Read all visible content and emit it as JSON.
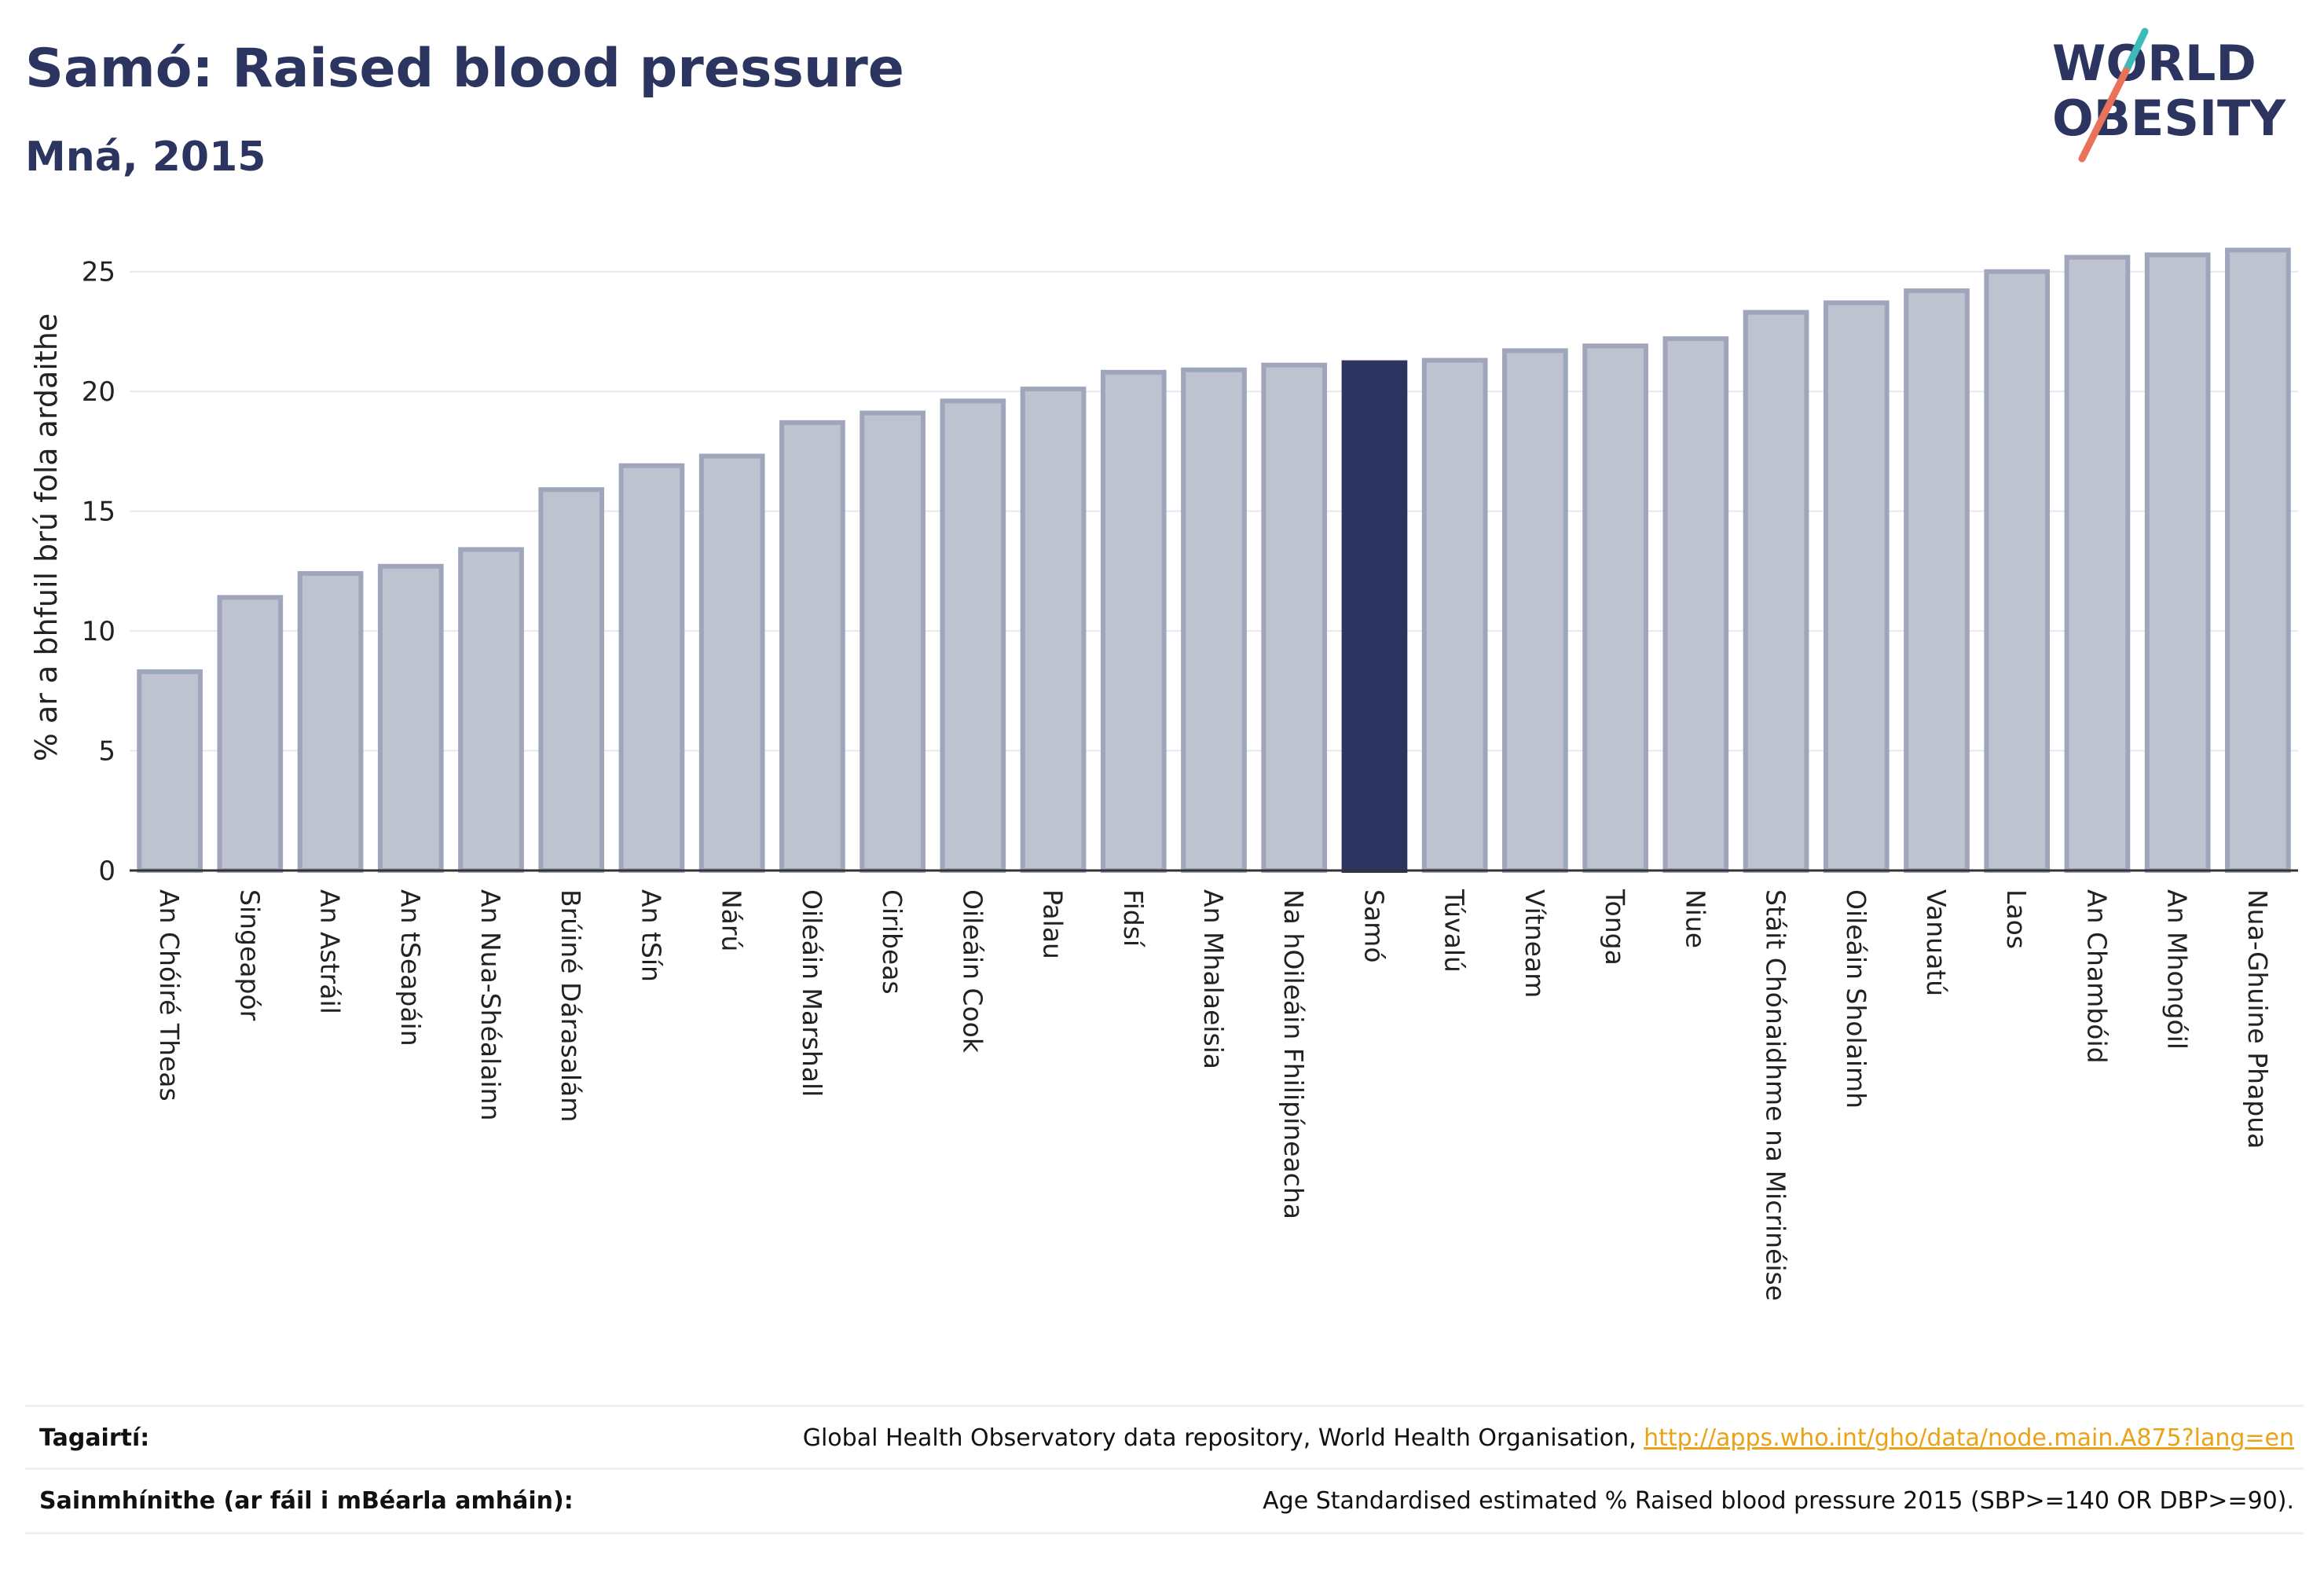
{
  "header": {
    "title": "Samó: Raised blood pressure",
    "subtitle": "Mná, 2015"
  },
  "logo": {
    "line1": "WORLD",
    "line2": "OBESITY",
    "accent_colors": [
      "#3dbbb8",
      "#e8735a"
    ]
  },
  "colors": {
    "bar": "#bfc3d0",
    "bar_stroke": "#9fa5bb",
    "highlight": "#2b3560",
    "grid": "#e6e8ee",
    "axis": "#333333"
  },
  "chart_data": {
    "type": "bar",
    "ylabel": "% ar a bhfuil brú fola ardaithe",
    "ylim": [
      0,
      26.5
    ],
    "yticks": [
      0,
      5,
      10,
      15,
      20,
      25
    ],
    "grid": true,
    "highlight": "Samó",
    "categories": [
      "An Chóiré Theas",
      "Singeapór",
      "An Astráil",
      "An tSeapáin",
      "An Nua-Shéalainn",
      "Brúiné Dárasalám",
      "An tSín",
      "Nárú",
      "Oileáin Marshall",
      "Ciribeas",
      "Oileáin Cook",
      "Palau",
      "Fidsí",
      "An Mhalaeisia",
      "Na hOileáin Fhilipíneacha",
      "Samó",
      "Túvalú",
      "Vítneam",
      "Tonga",
      "Niue",
      "Stáit Chónaidhme na Micrinéise",
      "Oileáin Sholaimh",
      "Vanuatú",
      "Laos",
      "An Chambóid",
      "An Mhongóil",
      "Nua-Ghuine Phapua"
    ],
    "values": [
      8.3,
      11.4,
      12.4,
      12.7,
      13.4,
      15.9,
      16.9,
      17.3,
      18.7,
      19.1,
      19.6,
      20.1,
      20.8,
      20.9,
      21.1,
      21.2,
      21.3,
      21.7,
      21.9,
      22.2,
      23.3,
      23.7,
      24.2,
      25.0,
      25.6,
      25.7,
      25.9
    ]
  },
  "footer": {
    "references_label": "Tagairtí:",
    "references_text": "Global Health Observatory data repository, World Health Organisation, ",
    "references_link": "http://apps.who.int/gho/data/node.main.A875?lang=en",
    "definitions_label": "Sainmhínithe (ar fáil i mBéarla amháin):",
    "definitions_text": "Age Standardised estimated % Raised blood pressure 2015 (SBP>=140 OR DBP>=90)."
  }
}
